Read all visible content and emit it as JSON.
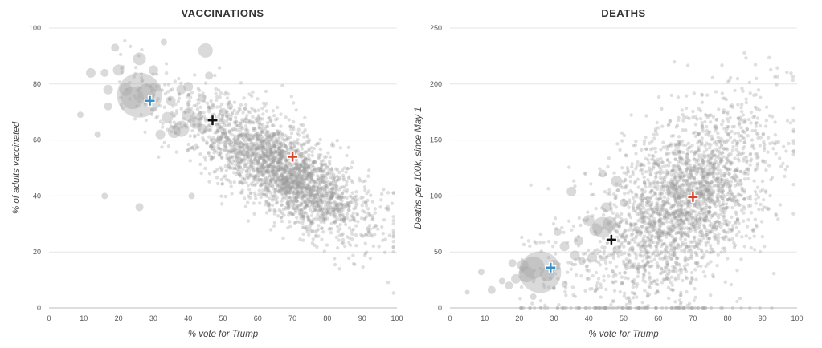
{
  "chart_data": [
    {
      "type": "scatter",
      "title": "VACCINATIONS",
      "xlabel": "% vote for Trump",
      "ylabel": "% of adults vaccinated",
      "xlim": [
        0,
        100
      ],
      "ylim": [
        0,
        100
      ],
      "x_ticks": [
        "0",
        "10",
        "20",
        "30",
        "40",
        "50",
        "60",
        "70",
        "80",
        "90",
        "100"
      ],
      "y_ticks": [
        "0",
        "20",
        "40",
        "60",
        "80",
        "100"
      ],
      "grid": "horizontal",
      "point_color": "#9a9a9a",
      "series": [
        {
          "name": "",
          "color": "#3a8fc6",
          "marker": "plus",
          "points": [
            [
              29,
              74
            ]
          ]
        },
        {
          "name": "",
          "color": "#111111",
          "marker": "plus",
          "points": [
            [
              47,
              67
            ]
          ]
        },
        {
          "name": "",
          "color": "#d9452b",
          "marker": "plus",
          "points": [
            [
              70,
              54
            ]
          ]
        }
      ],
      "bubbles": [
        [
          26,
          76,
          28
        ],
        [
          24,
          75,
          14
        ],
        [
          28,
          77,
          11
        ],
        [
          22,
          78,
          8
        ],
        [
          26,
          89,
          8
        ],
        [
          45,
          92,
          9
        ],
        [
          20,
          85,
          7
        ],
        [
          38,
          64,
          10
        ],
        [
          36,
          63,
          8
        ],
        [
          32,
          62,
          6
        ],
        [
          34,
          68,
          7
        ],
        [
          40,
          69,
          8
        ],
        [
          42,
          66,
          7
        ],
        [
          30,
          85,
          6
        ],
        [
          17,
          78,
          6
        ],
        [
          17,
          72,
          5
        ],
        [
          16,
          84,
          5
        ],
        [
          12,
          84,
          6
        ],
        [
          40,
          79,
          6
        ],
        [
          44,
          75,
          5
        ],
        [
          38,
          78,
          6
        ],
        [
          44,
          64,
          6
        ],
        [
          26,
          36,
          5
        ],
        [
          46,
          83,
          5
        ],
        [
          14,
          62,
          4
        ],
        [
          16,
          40,
          4
        ],
        [
          19,
          93,
          5
        ],
        [
          30,
          79,
          5
        ],
        [
          35,
          74,
          6
        ],
        [
          50,
          70,
          5
        ],
        [
          52,
          72,
          4
        ],
        [
          33,
          95,
          4
        ],
        [
          9,
          69,
          4
        ],
        [
          41,
          40,
          4
        ]
      ]
    },
    {
      "type": "scatter",
      "title": "DEATHS",
      "xlabel": "% vote for Trump",
      "ylabel": "Deaths per 100k, since May 1",
      "xlim": [
        0,
        100
      ],
      "ylim": [
        0,
        250
      ],
      "x_ticks": [
        "0",
        "10",
        "20",
        "30",
        "40",
        "50",
        "60",
        "70",
        "80",
        "90",
        "100"
      ],
      "y_ticks": [
        "0",
        "50",
        "100",
        "150",
        "200",
        "250"
      ],
      "grid": "horizontal",
      "point_color": "#9a9a9a",
      "series": [
        {
          "name": "",
          "color": "#3a8fc6",
          "marker": "plus",
          "points": [
            [
              29,
              36
            ]
          ]
        },
        {
          "name": "",
          "color": "#111111",
          "marker": "plus",
          "points": [
            [
              46.5,
              61
            ]
          ]
        },
        {
          "name": "",
          "color": "#d9452b",
          "marker": "plus",
          "points": [
            [
              70,
              99
            ]
          ]
        }
      ],
      "bubbles": [
        [
          26,
          32,
          26
        ],
        [
          24,
          36,
          14
        ],
        [
          22,
          30,
          10
        ],
        [
          28,
          30,
          9
        ],
        [
          21,
          38,
          7
        ],
        [
          30,
          38,
          7
        ],
        [
          19,
          26,
          6
        ],
        [
          44,
          72,
          13
        ],
        [
          46,
          75,
          9
        ],
        [
          42,
          70,
          8
        ],
        [
          40,
          78,
          7
        ],
        [
          37,
          60,
          6
        ],
        [
          45,
          90,
          6
        ],
        [
          48,
          113,
          7
        ],
        [
          35,
          104,
          6
        ],
        [
          41,
          45,
          6
        ],
        [
          36,
          47,
          6
        ],
        [
          33,
          55,
          6
        ],
        [
          18,
          40,
          5
        ],
        [
          17,
          20,
          5
        ],
        [
          12,
          16,
          5
        ],
        [
          15,
          24,
          4
        ],
        [
          50,
          94,
          5
        ],
        [
          38,
          42,
          5
        ],
        [
          31,
          68,
          5
        ],
        [
          55,
          84,
          4
        ],
        [
          44,
          120,
          5
        ],
        [
          54,
          70,
          4
        ],
        [
          48,
          52,
          5
        ],
        [
          9,
          32,
          4
        ],
        [
          5,
          14,
          3
        ],
        [
          33,
          21,
          4
        ],
        [
          24,
          10,
          4
        ]
      ]
    }
  ]
}
